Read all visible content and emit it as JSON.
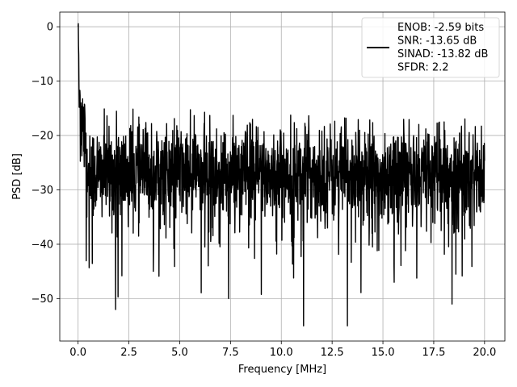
{
  "chart_data": {
    "type": "line",
    "xlabel": "Frequency [MHz]",
    "ylabel": "PSD [dB]",
    "xlim": [
      -0.9,
      21.0
    ],
    "ylim": [
      -57.8,
      2.7
    ],
    "xticks": [
      0.0,
      2.5,
      5.0,
      7.5,
      10.0,
      12.5,
      15.0,
      17.5,
      20.0
    ],
    "xtick_labels": [
      "0.0",
      "2.5",
      "5.0",
      "7.5",
      "10.0",
      "12.5",
      "15.0",
      "17.5",
      "20.0"
    ],
    "yticks": [
      0,
      -10,
      -20,
      -30,
      -40,
      -50
    ],
    "ytick_labels": [
      "0",
      "−10",
      "−20",
      "−30",
      "−40",
      "−50"
    ],
    "grid": true,
    "legend_position": "top-right",
    "series": [
      {
        "name": "ENOB: -2.59 bits\nSNR: -13.65 dB\nSINAD: -13.82 dB\nSFDR: 2.2",
        "color": "#000000",
        "x_range": [
          0.0,
          20.0
        ],
        "peak_db": 0,
        "noise_floor_mean_db": -27,
        "noise_upper_envelope_db": [
          -14,
          -16
        ],
        "notable_minima": [
          {
            "x": 1.85,
            "y": -52
          },
          {
            "x": 11.1,
            "y": -55
          },
          {
            "x": 13.25,
            "y": -55
          },
          {
            "x": 18.4,
            "y": -51
          }
        ]
      }
    ]
  }
}
